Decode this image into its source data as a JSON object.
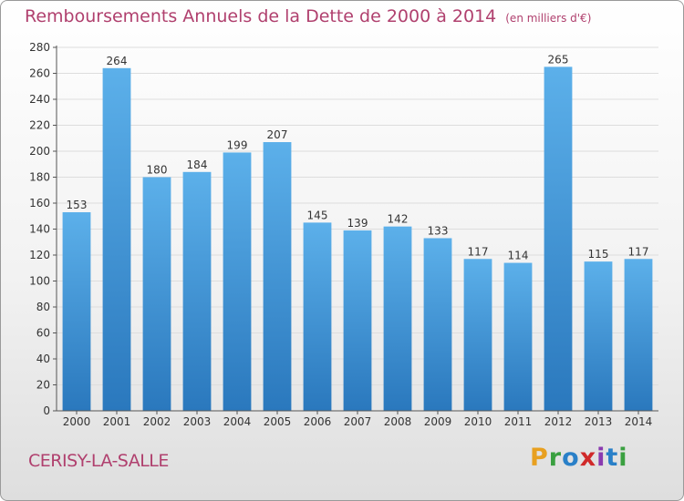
{
  "title": {
    "main": "Remboursements Annuels de la Dette de 2000 à 2014",
    "unit": "(en milliers d'€)"
  },
  "commune": "CERISY-LA-SALLE",
  "logo": {
    "text": "Proxiti"
  },
  "colors": {
    "bar_top": "#5cb0ea",
    "bar_bottom": "#2a78bd",
    "title": "#b0406e",
    "axis": "#555555",
    "grid": "#dddddd"
  },
  "chart_data": {
    "type": "bar",
    "title": "Remboursements Annuels de la Dette de 2000 à 2014",
    "xlabel": "",
    "ylabel": "",
    "categories": [
      "2000",
      "2001",
      "2002",
      "2003",
      "2004",
      "2005",
      "2006",
      "2007",
      "2008",
      "2009",
      "2010",
      "2011",
      "2012",
      "2013",
      "2014"
    ],
    "values": [
      153,
      264,
      180,
      184,
      199,
      207,
      145,
      139,
      142,
      133,
      117,
      114,
      265,
      115,
      117
    ],
    "ylim": [
      0,
      280
    ],
    "yticks": [
      0,
      20,
      40,
      60,
      80,
      100,
      120,
      140,
      160,
      180,
      200,
      220,
      240,
      260,
      280
    ],
    "grid": true,
    "data_labels": true
  }
}
